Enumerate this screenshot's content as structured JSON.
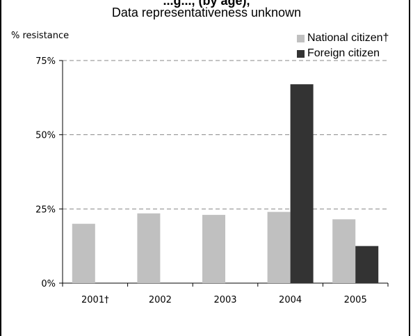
{
  "chart_data": {
    "type": "bar",
    "title": "...g..., (by age),",
    "subtitle": "Data representativeness unknown",
    "ylabel": "% resistance",
    "categories": [
      "2001†",
      "2002",
      "2003",
      "2004",
      "2005"
    ],
    "series": [
      {
        "name": "National citizen†",
        "color": "#c0c0c0",
        "values": [
          20,
          23.5,
          23,
          24,
          21.5
        ]
      },
      {
        "name": "Foreign citizen",
        "color": "#333333",
        "values": [
          null,
          null,
          null,
          67,
          12.5
        ]
      }
    ],
    "yticks": [
      "0%",
      "25%",
      "50%",
      "75%"
    ],
    "ylim": [
      0,
      75
    ],
    "grid": true,
    "legend_position": "top-right"
  }
}
